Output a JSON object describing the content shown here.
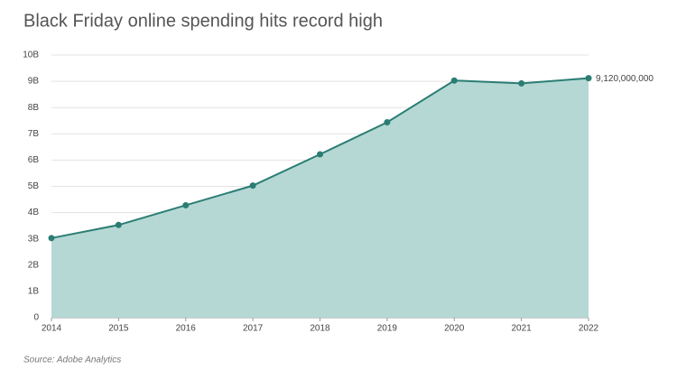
{
  "chart_data": {
    "type": "area",
    "title": "Black Friday online spending hits record high",
    "source": "Source: Adobe Analytics",
    "categories": [
      "2014",
      "2015",
      "2016",
      "2017",
      "2018",
      "2019",
      "2020",
      "2021",
      "2022"
    ],
    "values": [
      3030000000,
      3530000000,
      4280000000,
      5030000000,
      6220000000,
      7440000000,
      9030000000,
      8920000000,
      9120000000
    ],
    "value_labels": [
      null,
      null,
      null,
      null,
      null,
      null,
      null,
      null,
      "9,120,000,000"
    ],
    "color": "#2b7d74",
    "fill_color": "#b5d8d4",
    "ylim": [
      0,
      10000000000
    ],
    "yticks": [
      0,
      {
        "value": 1000000000,
        "label": "1B"
      },
      {
        "value": 2000000000,
        "label": "2B"
      },
      {
        "value": 3000000000,
        "label": "3B"
      },
      {
        "value": 4000000000,
        "label": "4B"
      },
      {
        "value": 5000000000,
        "label": "5B"
      },
      {
        "value": 6000000000,
        "label": "6B"
      },
      {
        "value": 7000000000,
        "label": "7B"
      },
      {
        "value": 8000000000,
        "label": "8B"
      },
      {
        "value": 9000000000,
        "label": "9B"
      },
      {
        "value": 10000000000,
        "label": "10B"
      }
    ],
    "grid": true
  }
}
